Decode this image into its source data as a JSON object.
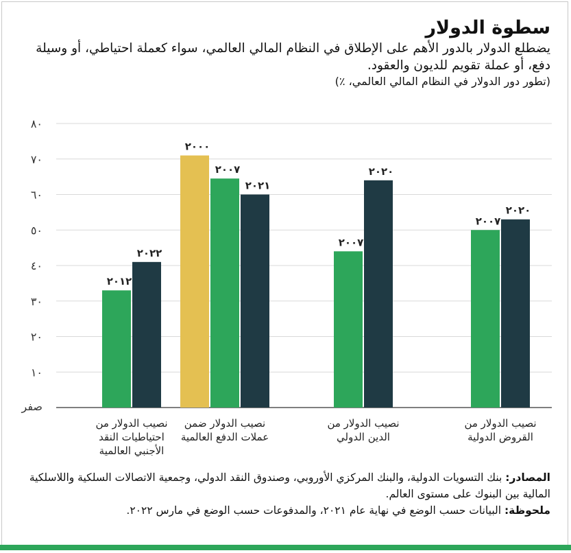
{
  "header": {
    "title": "سطوة الدولار",
    "subtitle": "يضطلع الدولار بالدور الأهم على الإطلاق في النظام المالي العالمي، سواء كعملة احتياطي، أو وسيلة دفع، أو عملة تقويم للديون والعقود.",
    "note": "(تطور دور الدولار في النظام المالي العالمي، ٪)"
  },
  "colors": {
    "green": "#2da65a",
    "navy": "#1f3a44",
    "gold": "#e4c052",
    "grid": "#d9d9d9",
    "axis": "#555555"
  },
  "chart_data": {
    "type": "bar",
    "ylim": [
      0,
      80
    ],
    "yticks": [
      {
        "value": 0,
        "label": "صفر"
      },
      {
        "value": 10,
        "label": "١٠"
      },
      {
        "value": 20,
        "label": "٢٠"
      },
      {
        "value": 30,
        "label": "٣٠"
      },
      {
        "value": 40,
        "label": "٤٠"
      },
      {
        "value": 50,
        "label": "٥٠"
      },
      {
        "value": 60,
        "label": "٦٠"
      },
      {
        "value": 70,
        "label": "٧٠"
      },
      {
        "value": 80,
        "label": "٨٠"
      }
    ],
    "groups": [
      {
        "category": [
          "نصيب الدولار من",
          "احتياطيات النقد",
          "الأجنبي العالمية"
        ],
        "bars": [
          {
            "year": "٢٠١٢",
            "value": 33,
            "color": "green"
          },
          {
            "year": "٢٠٢٢",
            "value": 41,
            "color": "navy"
          }
        ]
      },
      {
        "category": [
          "نصيب الدولار ضمن",
          "عملات الدفع العالمية"
        ],
        "bars": [
          {
            "year": "٢٠٠٠",
            "value": 71,
            "color": "gold"
          },
          {
            "year": "٢٠٠٧",
            "value": 64.5,
            "color": "green"
          },
          {
            "year": "٢٠٢١",
            "value": 60,
            "color": "navy"
          }
        ]
      },
      {
        "category": [
          "نصيب الدولار من",
          "الدين الدولي"
        ],
        "bars": [
          {
            "year": "٢٠٠٧",
            "value": 44,
            "color": "green"
          },
          {
            "year": "٢٠٢٠",
            "value": 64,
            "color": "navy"
          }
        ]
      },
      {
        "category": [
          "نصيب الدولار من",
          "القروض الدولية"
        ],
        "bars": [
          {
            "year": "٢٠٠٧",
            "value": 50,
            "color": "green"
          },
          {
            "year": "٢٠٢٠",
            "value": 53,
            "color": "navy"
          }
        ]
      }
    ]
  },
  "footer": {
    "sources_label": "المصادر:",
    "sources_text": " بنك التسويات الدولية، والبنك المركزي الأوروبي، وصندوق النقد الدولي، وجمعية الاتصالات السلكية واللاسلكية المالية بين البنوك على مستوى العالم.",
    "note_label": "ملحوظة:",
    "note_text": " البيانات حسب الوضع في نهاية عام ٢٠٢١، والمدفوعات حسب الوضع في مارس ٢٠٢٢."
  }
}
